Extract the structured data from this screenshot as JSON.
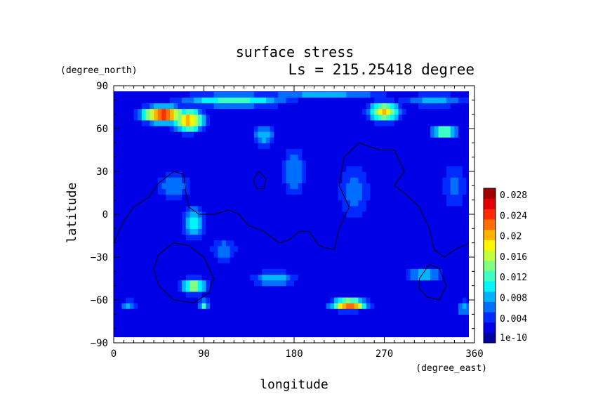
{
  "chart_data": {
    "type": "heatmap",
    "title": "surface stress",
    "subtitle": "Ls = 215.25418 degree",
    "xlabel": "longitude",
    "ylabel": "latitude",
    "x_units": "(degree_east)",
    "y_units": "(degree_north)",
    "xlim": [
      0,
      360
    ],
    "ylim": [
      -90,
      90
    ],
    "x_ticks": [
      "0",
      "90",
      "180",
      "270",
      "360"
    ],
    "y_ticks": [
      "90",
      "60",
      "30",
      "0",
      "−30",
      "−60",
      "−90"
    ],
    "colorbar": {
      "range": [
        0,
        0.03
      ],
      "tick_labels": [
        "0.028",
        "0.024",
        "0.02",
        "0.016",
        "0.012",
        "0.008",
        "0.004",
        "1e-10"
      ]
    },
    "background_value": 0.002,
    "blobs": [
      {
        "lon": 50,
        "lat": 70,
        "value": 0.027,
        "rx": 22,
        "ry": 6
      },
      {
        "lon": 75,
        "lat": 66,
        "value": 0.022,
        "rx": 16,
        "ry": 8
      },
      {
        "lon": 120,
        "lat": 80,
        "value": 0.013,
        "rx": 60,
        "ry": 5
      },
      {
        "lon": 210,
        "lat": 83,
        "value": 0.01,
        "rx": 70,
        "ry": 3
      },
      {
        "lon": 270,
        "lat": 72,
        "value": 0.02,
        "rx": 16,
        "ry": 7
      },
      {
        "lon": 330,
        "lat": 58,
        "value": 0.016,
        "rx": 14,
        "ry": 5
      },
      {
        "lon": 320,
        "lat": 80,
        "value": 0.009,
        "rx": 40,
        "ry": 5
      },
      {
        "lon": 80,
        "lat": -5,
        "value": 0.012,
        "rx": 12,
        "ry": 12
      },
      {
        "lon": 80,
        "lat": -50,
        "value": 0.016,
        "rx": 14,
        "ry": 6
      },
      {
        "lon": 90,
        "lat": -63,
        "value": 0.013,
        "rx": 6,
        "ry": 4
      },
      {
        "lon": 15,
        "lat": -63,
        "value": 0.009,
        "rx": 10,
        "ry": 4
      },
      {
        "lon": 160,
        "lat": -45,
        "value": 0.01,
        "rx": 25,
        "ry": 6
      },
      {
        "lon": 235,
        "lat": -63,
        "value": 0.025,
        "rx": 18,
        "ry": 4
      },
      {
        "lon": 310,
        "lat": -42,
        "value": 0.01,
        "rx": 20,
        "ry": 6
      },
      {
        "lon": 350,
        "lat": -65,
        "value": 0.01,
        "rx": 8,
        "ry": 6
      },
      {
        "lon": 150,
        "lat": 55,
        "value": 0.01,
        "rx": 12,
        "ry": 8
      },
      {
        "lon": 180,
        "lat": 30,
        "value": 0.008,
        "rx": 15,
        "ry": 20
      },
      {
        "lon": 60,
        "lat": 20,
        "value": 0.008,
        "rx": 20,
        "ry": 12
      },
      {
        "lon": 240,
        "lat": 15,
        "value": 0.007,
        "rx": 20,
        "ry": 25
      },
      {
        "lon": 340,
        "lat": 20,
        "value": 0.007,
        "rx": 15,
        "ry": 20
      },
      {
        "lon": 110,
        "lat": -25,
        "value": 0.008,
        "rx": 15,
        "ry": 10
      }
    ],
    "contours": [
      {
        "lonlat": [
          [
            0,
            -20
          ],
          [
            10,
            -5
          ],
          [
            20,
            5
          ],
          [
            35,
            12
          ],
          [
            45,
            22
          ],
          [
            60,
            30
          ],
          [
            70,
            28
          ],
          [
            72,
            15
          ],
          [
            75,
            5
          ],
          [
            85,
            0
          ],
          [
            100,
            0
          ],
          [
            115,
            3
          ],
          [
            125,
            0
          ],
          [
            135,
            -8
          ],
          [
            150,
            -12
          ],
          [
            165,
            -20
          ],
          [
            175,
            -18
          ],
          [
            185,
            -12
          ],
          [
            195,
            -12
          ],
          [
            205,
            -22
          ],
          [
            220,
            -25
          ],
          [
            225,
            -10
          ],
          [
            235,
            5
          ],
          [
            225,
            20
          ],
          [
            230,
            40
          ],
          [
            245,
            50
          ],
          [
            265,
            45
          ],
          [
            280,
            45
          ],
          [
            290,
            30
          ],
          [
            280,
            20
          ],
          [
            290,
            15
          ],
          [
            305,
            5
          ],
          [
            315,
            -10
          ],
          [
            320,
            -25
          ],
          [
            330,
            -30
          ],
          [
            340,
            -25
          ],
          [
            355,
            -20
          ],
          [
            360,
            -15
          ]
        ],
        "closed": false
      },
      {
        "lonlat": [
          [
            140,
            25
          ],
          [
            145,
            30
          ],
          [
            152,
            25
          ],
          [
            150,
            18
          ],
          [
            143,
            18
          ],
          [
            140,
            22
          ]
        ],
        "closed": true
      },
      {
        "lonlat": [
          [
            45,
            -28
          ],
          [
            60,
            -20
          ],
          [
            75,
            -22
          ],
          [
            90,
            -30
          ],
          [
            100,
            -45
          ],
          [
            95,
            -55
          ],
          [
            80,
            -62
          ],
          [
            60,
            -60
          ],
          [
            45,
            -50
          ],
          [
            40,
            -38
          ]
        ],
        "closed": true
      },
      {
        "lonlat": [
          [
            305,
            -45
          ],
          [
            315,
            -35
          ],
          [
            325,
            -38
          ],
          [
            332,
            -50
          ],
          [
            325,
            -60
          ],
          [
            313,
            -58
          ],
          [
            305,
            -52
          ]
        ],
        "closed": true
      }
    ]
  }
}
